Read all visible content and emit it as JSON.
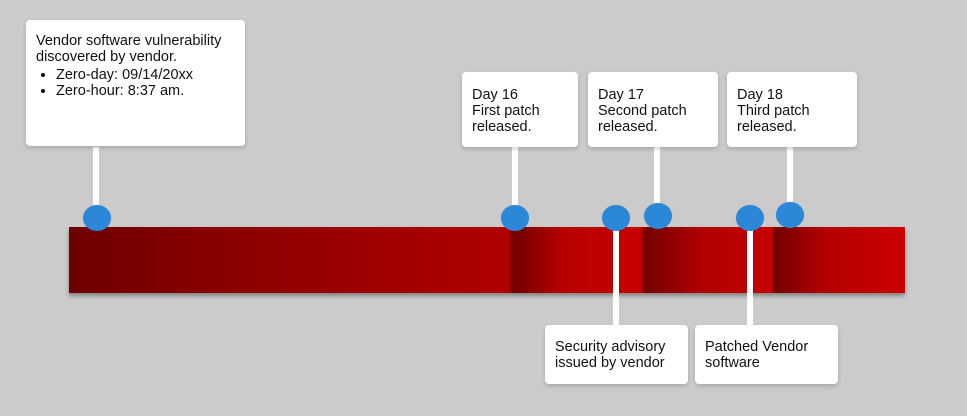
{
  "discovery": {
    "text": "Vendor software vulnerability discovered by vendor.",
    "bullets": [
      "Zero-day: 09/14/20xx",
      "Zero-hour: 8:37 am."
    ]
  },
  "patches": [
    {
      "day": "Day 16",
      "label": "First patch",
      "status": "released."
    },
    {
      "day": "Day 17",
      "label": "Second patch",
      "status": "released."
    },
    {
      "day": "Day 18",
      "label": "Third patch",
      "status": "released."
    }
  ],
  "advisory": {
    "line1": "Security advisory",
    "line2": "issued by vendor"
  },
  "patched": {
    "line1": "Patched Vendor",
    "line2": "software"
  },
  "colors": {
    "background": "#cbcbcb",
    "timeline_dark": "#6e0000",
    "timeline_bright": "#cc0000",
    "marker": "#2b87d8",
    "callout": "#ffffff"
  }
}
